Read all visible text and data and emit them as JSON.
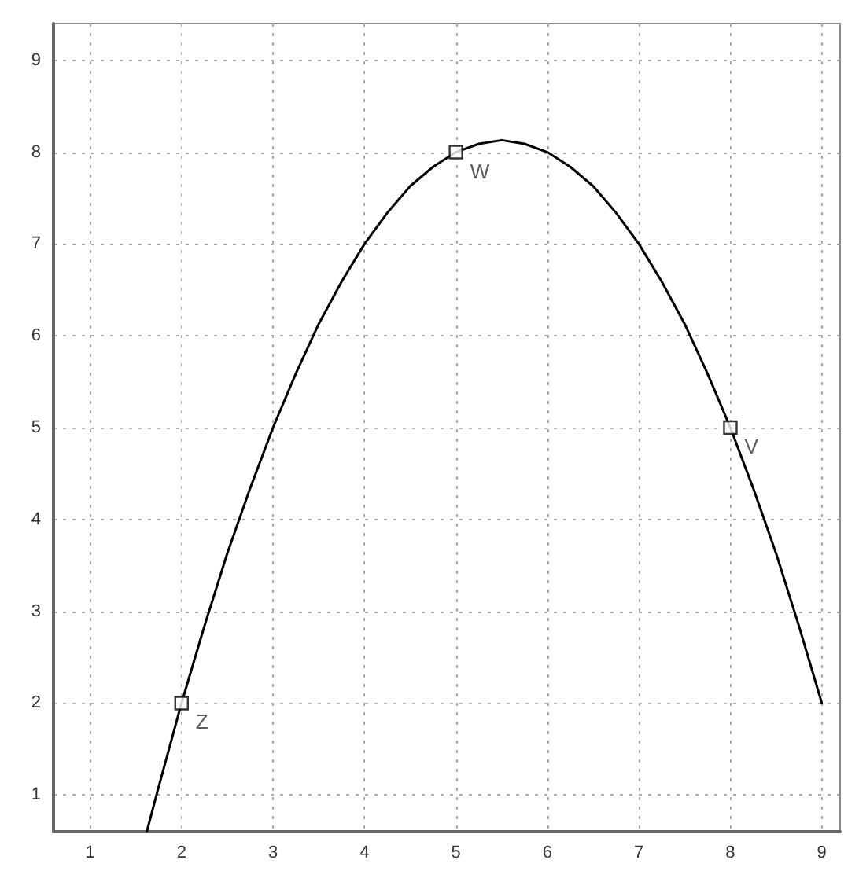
{
  "chart_data": {
    "type": "line",
    "xlim": [
      0.6,
      9.2
    ],
    "ylim": [
      0.6,
      9.4
    ],
    "xticks": [
      1,
      2,
      3,
      4,
      5,
      6,
      7,
      8,
      9
    ],
    "yticks": [
      1,
      2,
      3,
      4,
      5,
      6,
      7,
      8,
      9
    ],
    "grid": true,
    "series": [
      {
        "color": "#000000",
        "marker": "none",
        "line_style": "solid",
        "x": [
          1.62,
          1.75,
          2,
          2.25,
          2.5,
          2.75,
          3,
          3.25,
          3.5,
          3.75,
          4,
          4.25,
          4.5,
          4.75,
          5,
          5.25,
          5.5,
          5.75,
          6,
          6.25,
          6.5,
          6.75,
          7,
          7.25,
          7.5,
          7.75,
          8,
          8.25,
          8.5,
          8.75,
          9
        ],
        "values": [
          0.6,
          1.09,
          2,
          2.84,
          3.63,
          4.34,
          5,
          5.59,
          6.13,
          6.59,
          7,
          7.34,
          7.63,
          7.84,
          8,
          8.09,
          8.13,
          8.09,
          8,
          7.84,
          7.63,
          7.34,
          7,
          6.59,
          6.13,
          5.59,
          5,
          4.34,
          3.63,
          2.84,
          2
        ]
      },
      {
        "type": "scatter",
        "color": "#000000",
        "marker": "square",
        "x": [
          2,
          5,
          8
        ],
        "values": [
          2,
          8,
          5
        ]
      }
    ],
    "annotations": [
      {
        "text": "Z",
        "x": 2,
        "y": 2
      },
      {
        "text": "W",
        "x": 5,
        "y": 8
      },
      {
        "text": "V",
        "x": 8,
        "y": 5
      }
    ]
  }
}
